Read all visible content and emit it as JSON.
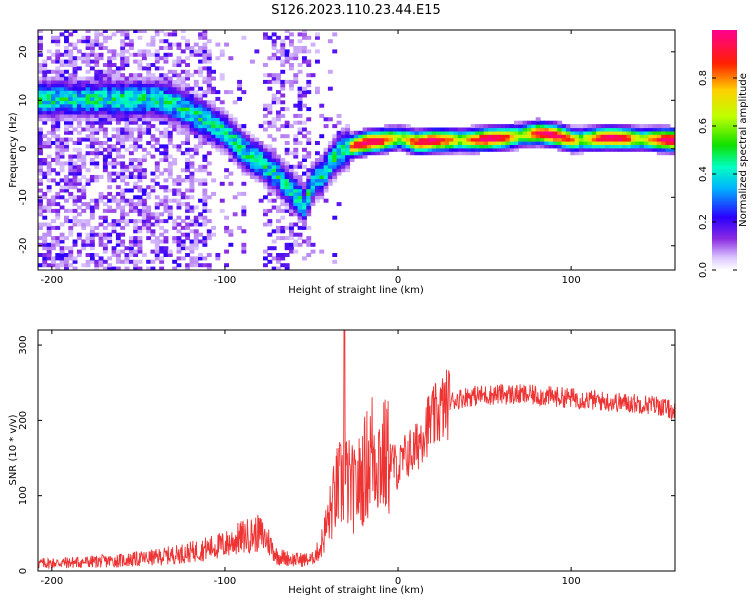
{
  "figure": {
    "title": "S126.2023.110.23.44.E15"
  },
  "chart_data": [
    {
      "type": "heatmap",
      "xlabel": "Height of straight line (km)",
      "ylabel": "Frequency (Hz)",
      "xlim": [
        -208,
        160
      ],
      "ylim": [
        -25,
        24.5
      ],
      "xticks": [
        -200,
        -100,
        0,
        100
      ],
      "yticks": [
        -20,
        -10,
        0,
        10,
        20
      ],
      "grid": false,
      "colorbar": {
        "label": "Normalized spectral amplitude",
        "range": [
          0,
          1
        ],
        "ticks": [
          0.0,
          0.2,
          0.4,
          0.6,
          0.8
        ],
        "colormap": "rainbow (purple → blue → cyan → green → yellow → red → magenta)"
      },
      "ridge": {
        "x": [
          -140,
          -130,
          -120,
          -110,
          -100,
          -90,
          -80,
          -70,
          -60,
          -55,
          -50,
          -45,
          -40,
          -35,
          -30,
          -20,
          -10,
          0,
          10,
          20,
          40,
          60,
          80,
          90,
          100,
          120,
          160
        ],
        "y": [
          10,
          9,
          7,
          5,
          3,
          -1,
          -3,
          -6,
          -10,
          -12,
          -7,
          -6,
          -3,
          -1,
          0,
          1,
          1.5,
          2,
          1,
          1.5,
          1.5,
          2,
          3,
          2.5,
          1.5,
          2,
          1.5
        ]
      }
    },
    {
      "type": "line",
      "xlabel": "Height of straight line (km)",
      "ylabel": "SNR (10 * v/v)",
      "xlim": [
        -208,
        160
      ],
      "ylim": [
        0,
        320
      ],
      "xticks": [
        -200,
        -100,
        0,
        100
      ],
      "yticks": [
        0,
        100,
        200,
        300
      ],
      "grid": false,
      "series": [
        {
          "color": "#ee3333",
          "x": [
            -208,
            -180,
            -160,
            -140,
            -120,
            -100,
            -90,
            -80,
            -75,
            -70,
            -60,
            -50,
            -45,
            -40,
            -35,
            -30,
            -25,
            -20,
            -15,
            -10,
            -5,
            0,
            5,
            10,
            15,
            20,
            25,
            30,
            40,
            60,
            80,
            100,
            120,
            140,
            150,
            160
          ],
          "values": [
            10,
            12,
            14,
            18,
            25,
            35,
            45,
            50,
            40,
            20,
            15,
            15,
            30,
            70,
            110,
            120,
            105,
            130,
            160,
            150,
            150,
            135,
            155,
            160,
            190,
            200,
            215,
            225,
            232,
            235,
            233,
            230,
            225,
            222,
            220,
            212
          ]
        }
      ]
    }
  ]
}
